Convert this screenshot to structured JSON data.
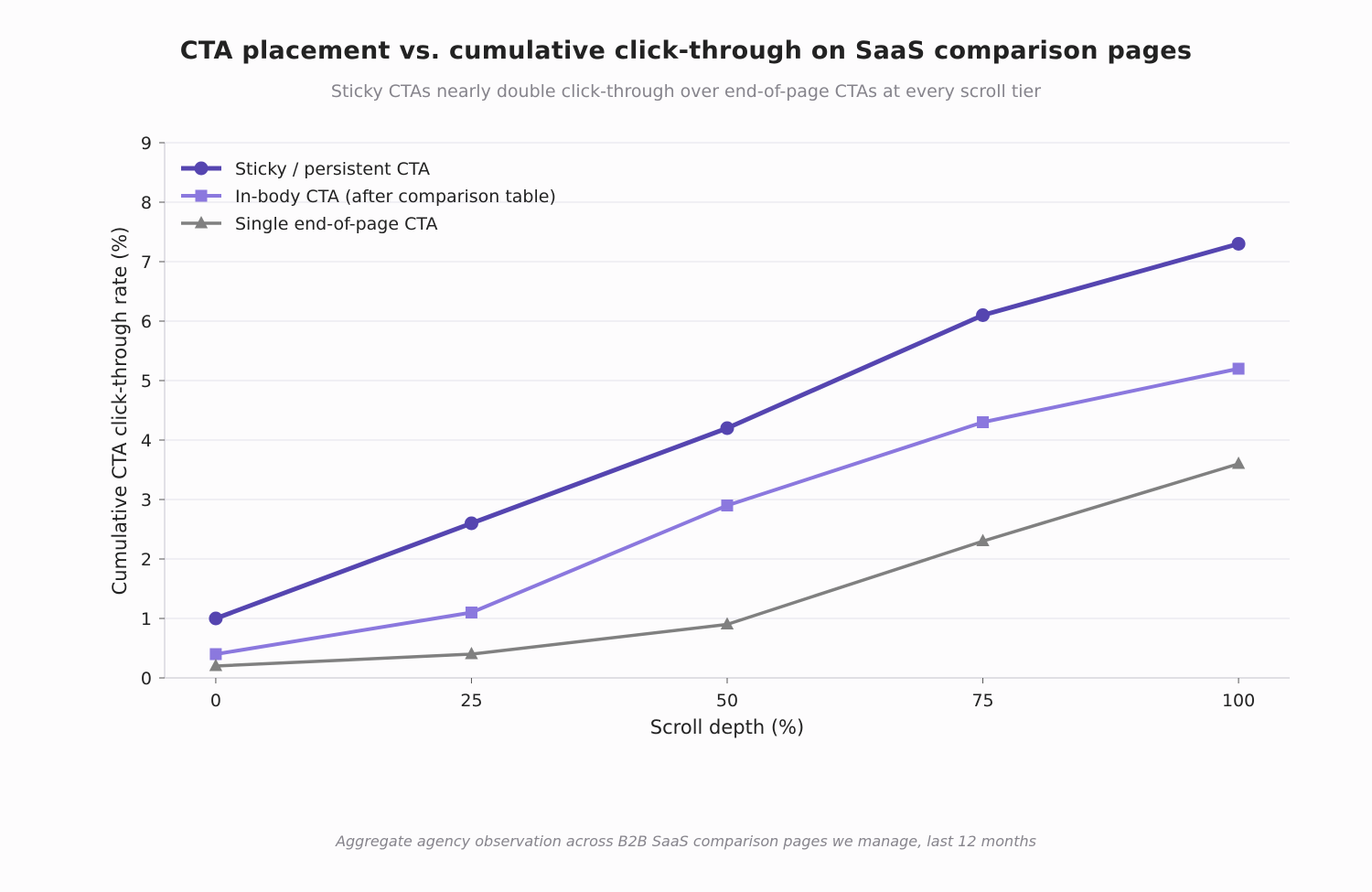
{
  "chart_data": {
    "type": "line",
    "title": "CTA placement vs. cumulative click-through on SaaS comparison pages",
    "subtitle": "Sticky CTAs nearly double click-through over end-of-page CTAs at every scroll tier",
    "footnote": "Aggregate agency observation across B2B SaaS comparison pages we manage, last 12 months",
    "xlabel": "Scroll depth (%)",
    "ylabel": "Cumulative CTA click-through rate (%)",
    "x": [
      0,
      25,
      50,
      75,
      100
    ],
    "xlim": [
      -5,
      105
    ],
    "ylim": [
      0,
      9
    ],
    "xticks": [
      0,
      25,
      50,
      75,
      100
    ],
    "yticks": [
      0,
      1,
      2,
      3,
      4,
      5,
      6,
      7,
      8,
      9
    ],
    "grid": "horizontal",
    "legend_position": "top-left",
    "series": [
      {
        "name": "Sticky / persistent CTA",
        "values": [
          1.0,
          2.6,
          4.2,
          6.1,
          7.3
        ],
        "color": "#5545b0",
        "marker": "circle"
      },
      {
        "name": "In-body CTA (after comparison table)",
        "values": [
          0.4,
          1.1,
          2.9,
          4.3,
          5.2
        ],
        "color": "#8b78de",
        "marker": "square"
      },
      {
        "name": "Single end-of-page CTA",
        "values": [
          0.2,
          0.4,
          0.9,
          2.3,
          3.6
        ],
        "color": "#808080",
        "marker": "triangle"
      }
    ]
  }
}
